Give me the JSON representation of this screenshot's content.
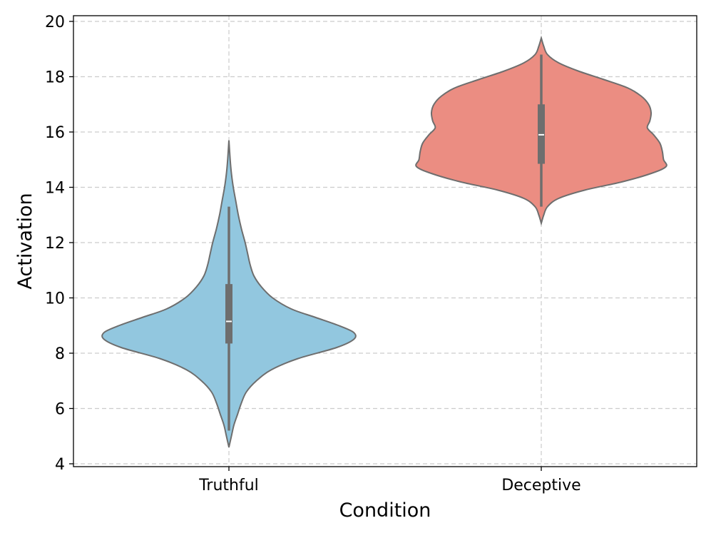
{
  "chart_data": {
    "type": "violin",
    "title": "",
    "xlabel": "Condition",
    "ylabel": "Activation",
    "ylim": [
      4,
      20
    ],
    "yticks": [
      4,
      6,
      8,
      10,
      12,
      14,
      16,
      18,
      20
    ],
    "grid": true,
    "categories": [
      "Truthful",
      "Deceptive"
    ],
    "series": [
      {
        "category": "Truthful",
        "color": "#92c7df",
        "min": 4.6,
        "max": 15.7,
        "whisker_low": 5.2,
        "whisker_high": 13.3,
        "q1": 8.35,
        "median": 9.15,
        "q3": 10.5,
        "density": [
          [
            4.6,
            0.0
          ],
          [
            5.0,
            0.02
          ],
          [
            5.4,
            0.04
          ],
          [
            5.8,
            0.07
          ],
          [
            6.2,
            0.1
          ],
          [
            6.6,
            0.14
          ],
          [
            7.0,
            0.22
          ],
          [
            7.4,
            0.34
          ],
          [
            7.8,
            0.55
          ],
          [
            8.2,
            0.86
          ],
          [
            8.5,
            1.0
          ],
          [
            8.75,
            1.0
          ],
          [
            9.0,
            0.88
          ],
          [
            9.3,
            0.69
          ],
          [
            9.6,
            0.5
          ],
          [
            10.0,
            0.35
          ],
          [
            10.4,
            0.26
          ],
          [
            10.8,
            0.2
          ],
          [
            11.2,
            0.17
          ],
          [
            11.6,
            0.15
          ],
          [
            12.0,
            0.13
          ],
          [
            12.5,
            0.1
          ],
          [
            13.0,
            0.075
          ],
          [
            13.5,
            0.055
          ],
          [
            14.0,
            0.035
          ],
          [
            14.5,
            0.02
          ],
          [
            15.0,
            0.01
          ],
          [
            15.7,
            0.0
          ]
        ]
      },
      {
        "category": "Deceptive",
        "color": "#eb8d82",
        "min": 12.7,
        "max": 19.4,
        "whisker_low": 13.3,
        "whisker_high": 18.8,
        "q1": 14.85,
        "median": 15.9,
        "q3": 17.0,
        "density": [
          [
            12.7,
            0.0
          ],
          [
            13.0,
            0.02
          ],
          [
            13.3,
            0.05
          ],
          [
            13.6,
            0.14
          ],
          [
            13.9,
            0.35
          ],
          [
            14.2,
            0.65
          ],
          [
            14.5,
            0.88
          ],
          [
            14.75,
            1.0
          ],
          [
            15.0,
            0.98
          ],
          [
            15.3,
            0.97
          ],
          [
            15.6,
            0.95
          ],
          [
            15.9,
            0.9
          ],
          [
            16.15,
            0.85
          ],
          [
            16.4,
            0.87
          ],
          [
            16.7,
            0.88
          ],
          [
            17.0,
            0.86
          ],
          [
            17.3,
            0.8
          ],
          [
            17.6,
            0.69
          ],
          [
            17.9,
            0.5
          ],
          [
            18.2,
            0.3
          ],
          [
            18.5,
            0.14
          ],
          [
            18.8,
            0.05
          ],
          [
            19.1,
            0.02
          ],
          [
            19.4,
            0.0
          ]
        ]
      }
    ]
  }
}
